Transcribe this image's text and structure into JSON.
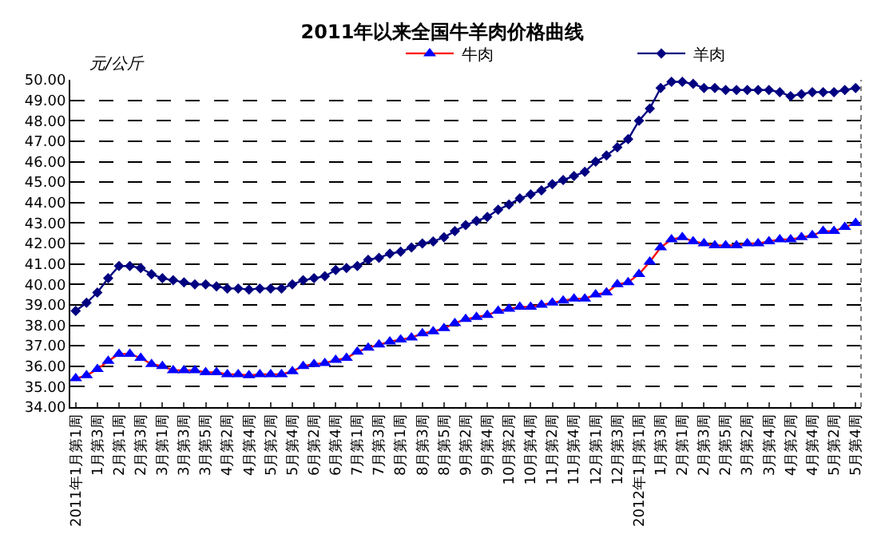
{
  "chart_data": {
    "type": "line",
    "title": "2011年以来全国牛羊肉价格曲线",
    "ylabel": "元/公斤",
    "categories": [
      "2011年1月第1周",
      null,
      "1月第3周",
      null,
      "2月第1周",
      null,
      "2月第3周",
      null,
      "3月第1周",
      null,
      "3月第3周",
      null,
      "3月第5周",
      null,
      "4月第2周",
      null,
      "4月第4周",
      null,
      "5月第2周",
      null,
      "5月第4周",
      null,
      "6月第2周",
      null,
      "6月第4周",
      null,
      "7月第1周",
      null,
      "7月第3周",
      null,
      "8月第1周",
      null,
      "8月第3周",
      null,
      "8月第5周",
      null,
      "9月第2周",
      null,
      "9月第4周",
      null,
      "10月第2周",
      null,
      "10月第4周",
      null,
      "11月第2周",
      null,
      "11月第4周",
      null,
      "12月第1周",
      null,
      "12月第3周",
      null,
      "2012年1月第1周",
      null,
      "1月第3周",
      null,
      "2月第1周",
      null,
      "2月第3周",
      null,
      "2月第5周",
      null,
      "3月第2周",
      null,
      "3月第4周",
      null,
      "4月第2周",
      null,
      "4月第4周",
      null,
      "5月第2周",
      null,
      "5月第4周"
    ],
    "series": [
      {
        "name": "牛肉",
        "color": "#0000ff",
        "marker": "triangle",
        "values": [
          35.4,
          35.55,
          35.85,
          36.25,
          36.6,
          36.6,
          36.4,
          36.1,
          36.0,
          35.8,
          35.8,
          35.8,
          35.7,
          35.7,
          35.6,
          35.6,
          35.55,
          35.6,
          35.6,
          35.6,
          35.75,
          36.0,
          36.1,
          36.15,
          36.3,
          36.4,
          36.7,
          36.9,
          37.05,
          37.2,
          37.3,
          37.4,
          37.6,
          37.7,
          37.85,
          38.1,
          38.3,
          38.4,
          38.5,
          38.7,
          38.8,
          38.9,
          38.9,
          39.0,
          39.1,
          39.2,
          39.3,
          39.3,
          39.5,
          39.6,
          40.0,
          40.1,
          40.5,
          41.1,
          41.8,
          42.2,
          42.3,
          42.1,
          42.0,
          41.9,
          41.9,
          41.9,
          42.0,
          42.0,
          42.1,
          42.2,
          42.2,
          42.3,
          42.4,
          42.6,
          42.6,
          42.8,
          43.0
        ]
      },
      {
        "name": "羊肉",
        "color": "#000080",
        "marker": "diamond",
        "values": [
          38.7,
          39.1,
          39.6,
          40.3,
          40.9,
          40.9,
          40.8,
          40.5,
          40.3,
          40.2,
          40.1,
          40.0,
          40.0,
          39.9,
          39.8,
          39.8,
          39.75,
          39.8,
          39.8,
          39.8,
          40.0,
          40.2,
          40.3,
          40.4,
          40.7,
          40.8,
          40.9,
          41.2,
          41.3,
          41.5,
          41.6,
          41.8,
          42.0,
          42.1,
          42.3,
          42.6,
          42.9,
          43.1,
          43.3,
          43.65,
          43.9,
          44.2,
          44.4,
          44.6,
          44.9,
          45.1,
          45.3,
          45.5,
          46.0,
          46.3,
          46.7,
          47.1,
          48.0,
          48.6,
          49.6,
          49.9,
          49.9,
          49.8,
          49.6,
          49.6,
          49.5,
          49.5,
          49.5,
          49.5,
          49.5,
          49.4,
          49.2,
          49.3,
          49.4,
          49.4,
          49.4,
          49.5,
          49.6
        ]
      }
    ],
    "ylim": [
      34,
      50
    ],
    "yticks": [
      {
        "value": 34,
        "label": "34.00"
      },
      {
        "value": 35,
        "label": "35.00"
      },
      {
        "value": 36,
        "label": "36.00"
      },
      {
        "value": 37,
        "label": "37.00"
      },
      {
        "value": 38,
        "label": "38.00"
      },
      {
        "value": 39,
        "label": "39.00"
      },
      {
        "value": 40,
        "label": "40.00"
      },
      {
        "value": 41,
        "label": "41.00"
      },
      {
        "value": 42,
        "label": "42.00"
      },
      {
        "value": 43,
        "label": "43.00"
      },
      {
        "value": 44,
        "label": "44.00"
      },
      {
        "value": 45,
        "label": "45.00"
      },
      {
        "value": 46,
        "label": "46.00"
      },
      {
        "value": 47,
        "label": "47.00"
      },
      {
        "value": 48,
        "label": "48.00"
      },
      {
        "value": 49,
        "label": "49.00"
      },
      {
        "value": 50,
        "label": "50.00"
      }
    ],
    "grid": "y",
    "legend": "top right",
    "line_style": "solid"
  }
}
